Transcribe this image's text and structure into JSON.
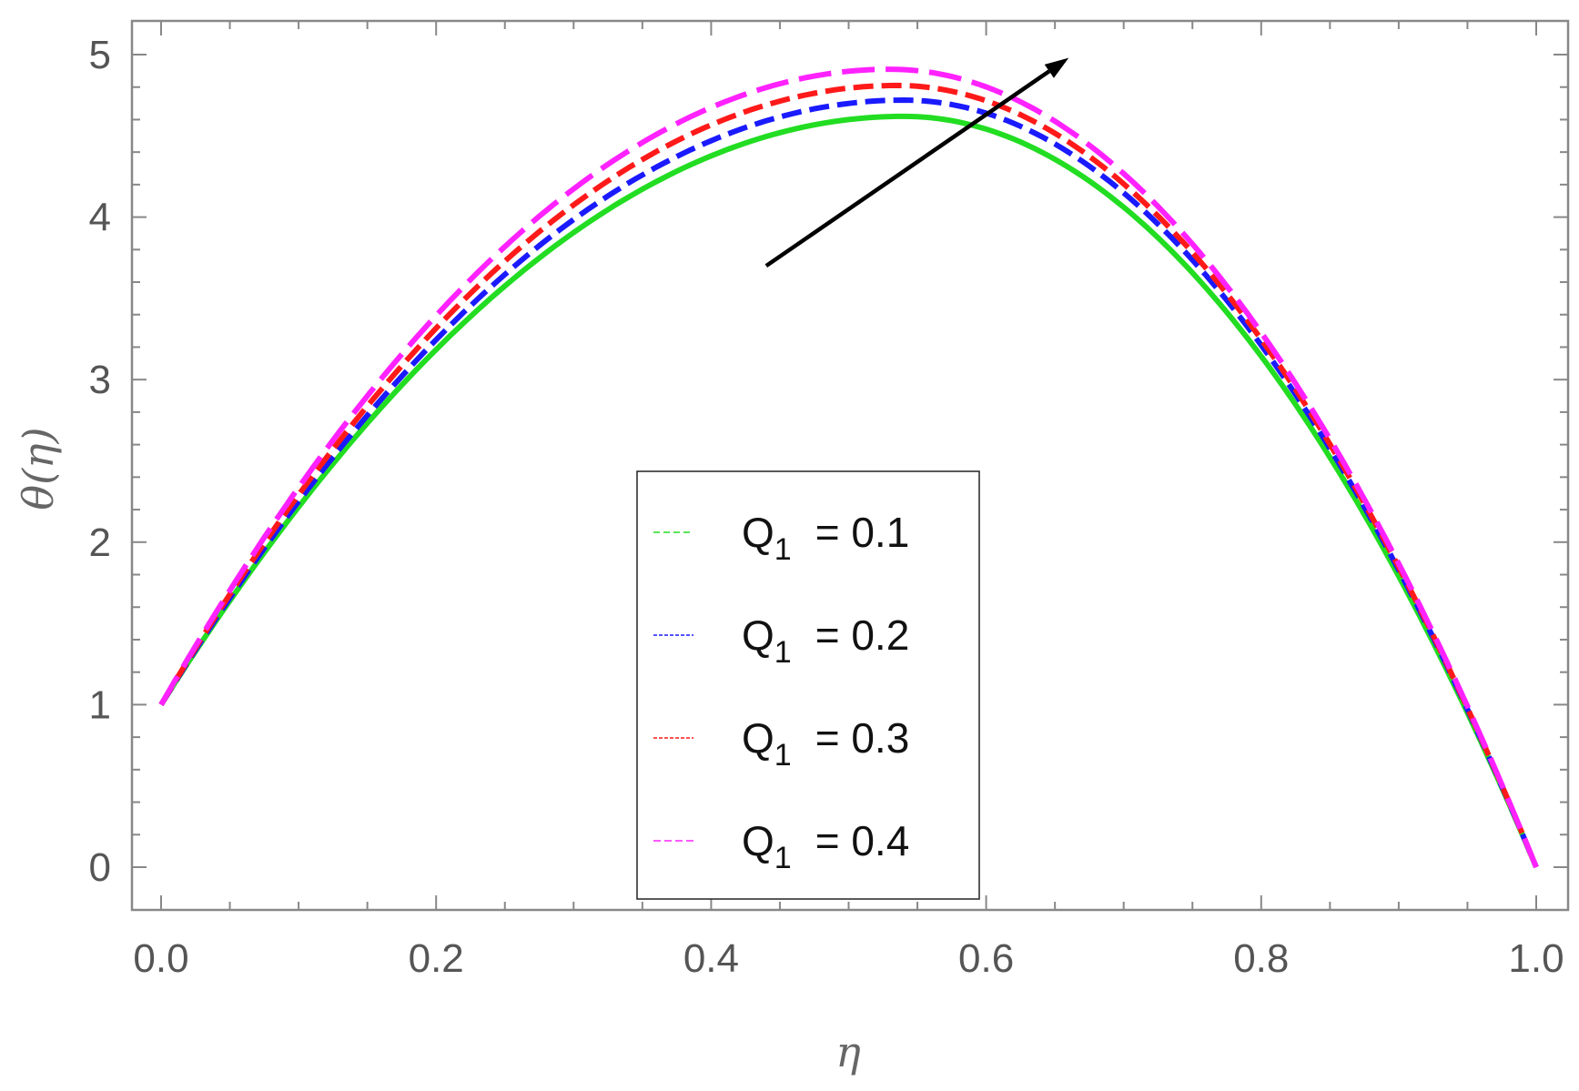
{
  "chart_data": {
    "type": "line",
    "title": "",
    "xlabel": "η",
    "ylabel": "θ(η)",
    "xlim": [
      0.0,
      1.0
    ],
    "ylim": [
      0,
      5
    ],
    "xticks": [
      "0.0",
      "0.2",
      "0.4",
      "0.6",
      "0.8",
      "1.0"
    ],
    "yticks": [
      "0",
      "1",
      "2",
      "3",
      "4",
      "5"
    ],
    "grid": false,
    "legend_position": "bottom-center",
    "legend": [
      {
        "symbol": "Q",
        "subscript": "1",
        "value": "= 0.1",
        "color": "#22dd22",
        "dash": "solid"
      },
      {
        "symbol": "Q",
        "subscript": "1",
        "value": "= 0.2",
        "color": "#1a1aff",
        "dash": "dashed"
      },
      {
        "symbol": "Q",
        "subscript": "1",
        "value": "= 0.3",
        "color": "#ff1a1a",
        "dash": "dashed"
      },
      {
        "symbol": "Q",
        "subscript": "1",
        "value": "= 0.4",
        "color": "#ff22ff",
        "dash": "long-dashed"
      }
    ],
    "series": [
      {
        "param": 0.1,
        "color": "#22dd22",
        "peak_x": 0.54,
        "peak_y": 4.62
      },
      {
        "param": 0.2,
        "color": "#1a1aff",
        "peak_x": 0.54,
        "peak_y": 4.72
      },
      {
        "param": 0.3,
        "color": "#ff1a1a",
        "peak_x": 0.535,
        "peak_y": 4.81
      },
      {
        "param": 0.4,
        "color": "#ff22ff",
        "peak_x": 0.53,
        "peak_y": 4.91
      }
    ],
    "boundary": {
      "x0": 0.0,
      "y0": 1.0,
      "x1": 1.0,
      "y1": 0.0
    },
    "annotation_arrow": {
      "from": [
        0.44,
        3.7
      ],
      "to": [
        0.66,
        4.98
      ],
      "meaning": "increasing Q1"
    }
  }
}
